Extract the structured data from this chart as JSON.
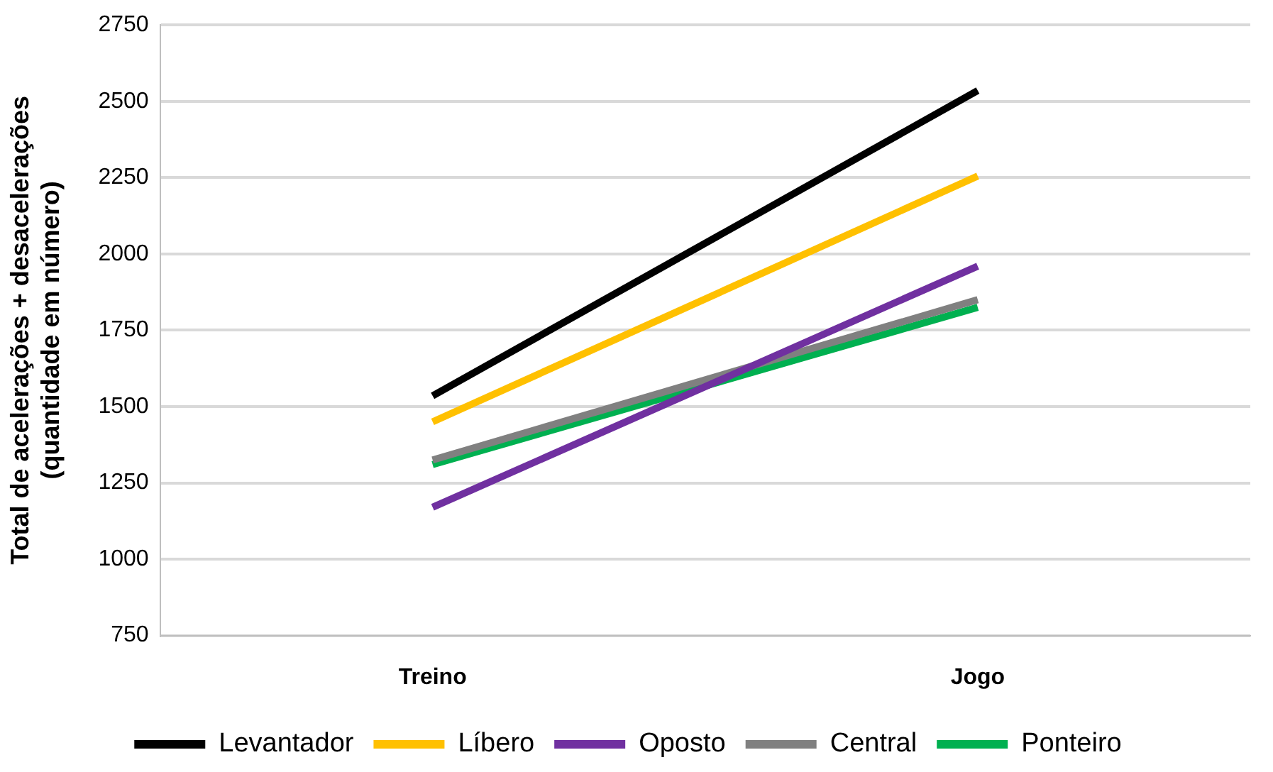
{
  "chart_data": {
    "type": "line",
    "ylabel": "Total de acelerações + desacelerações\n(quantidade em número)",
    "categories": [
      "Treino",
      "Jogo"
    ],
    "series": [
      {
        "name": "Levantador",
        "color": "#000000",
        "values": [
          1535,
          2535
        ]
      },
      {
        "name": "Líbero",
        "color": "#ffc000",
        "values": [
          1450,
          2255
        ]
      },
      {
        "name": "Oposto",
        "color": "#7030a0",
        "values": [
          1170,
          1960
        ]
      },
      {
        "name": "Central",
        "color": "#808080",
        "values": [
          1325,
          1850
        ]
      },
      {
        "name": "Ponteiro",
        "color": "#00b050",
        "values": [
          1310,
          1825
        ]
      }
    ],
    "ylim": [
      750,
      2750
    ],
    "yticks": [
      750,
      1000,
      1250,
      1500,
      1750,
      2000,
      2250,
      2500,
      2750
    ],
    "grid": "y",
    "legend": "bottom",
    "marker": "none",
    "line_style": "solid"
  }
}
